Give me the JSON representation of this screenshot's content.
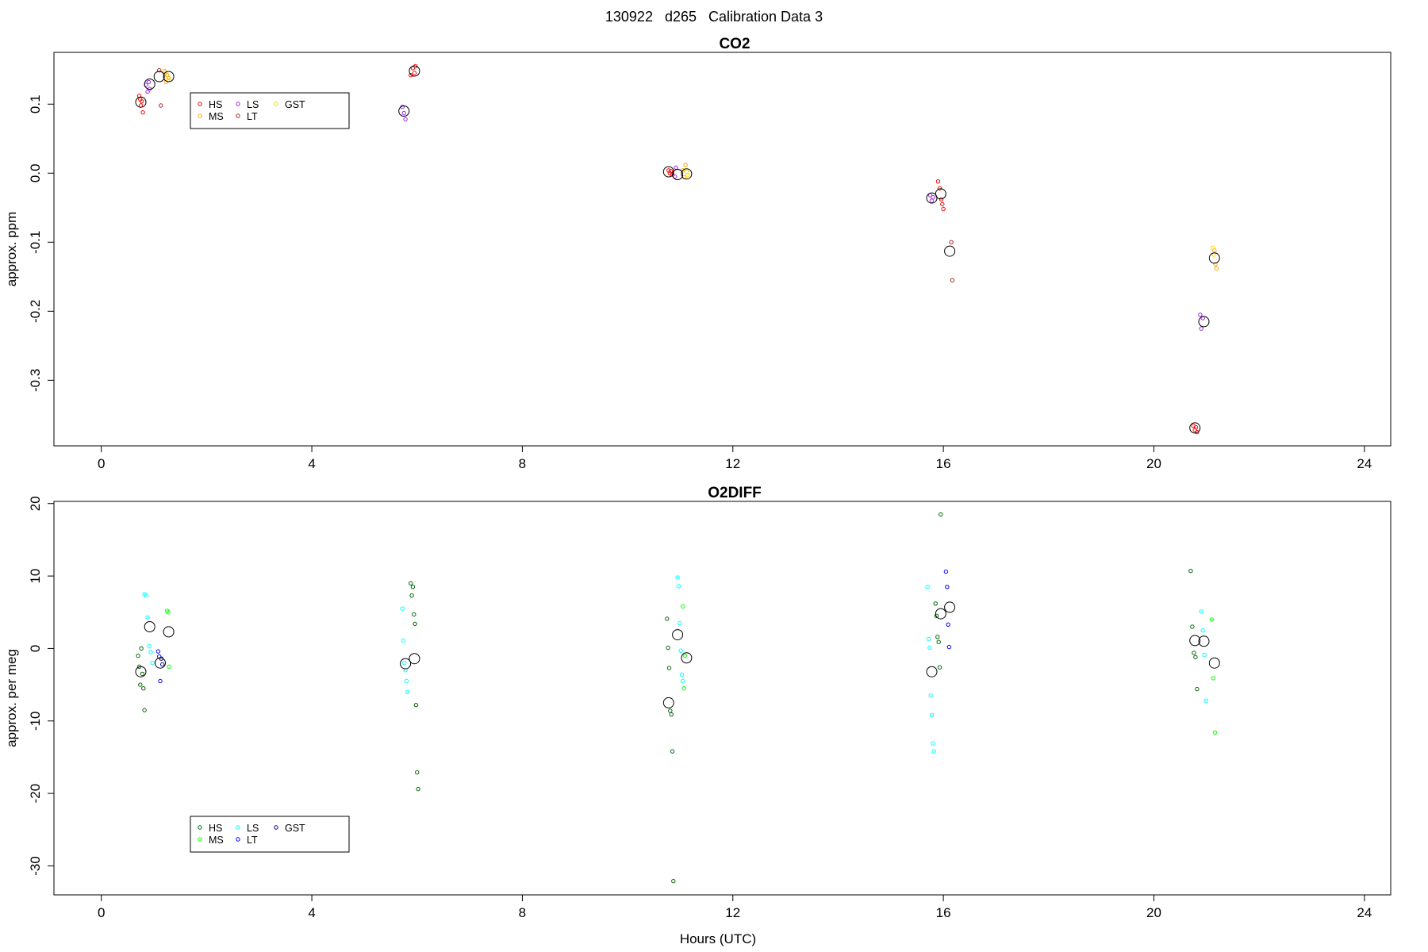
{
  "figure_title": "130922   d265   Calibration Data 3",
  "xlabel": "Hours (UTC)",
  "chart_data": [
    {
      "type": "scatter",
      "title": "CO2",
      "ylabel": "approx. ppm",
      "xlim": [
        -0.9,
        24.5
      ],
      "ylim": [
        -0.395,
        0.175
      ],
      "xticks": [
        0,
        4,
        8,
        12,
        16,
        20,
        24
      ],
      "yticks": [
        0.1,
        0.0,
        -0.1,
        -0.2,
        -0.3
      ],
      "ytick_labels": [
        "0.1",
        "0.0",
        "-0.1",
        "-0.2",
        "-0.3"
      ],
      "legend": {
        "position": "top-left",
        "entries": [
          {
            "label": "HS",
            "color": "#ff0000"
          },
          {
            "label": "MS",
            "color": "#ffa500"
          },
          {
            "label": "LS",
            "color": "#a020f0"
          },
          {
            "label": "LT",
            "color": "#b22222"
          },
          {
            "label": "GST",
            "color": "#ffd700"
          }
        ]
      },
      "series": [
        {
          "name": "HS",
          "color": "#ff0000",
          "points": [
            [
              0.72,
              0.112
            ],
            [
              0.75,
              0.098
            ],
            [
              0.77,
              0.104
            ],
            [
              0.79,
              0.088
            ],
            [
              0.74,
              0.107
            ],
            [
              5.88,
              0.142
            ],
            [
              5.92,
              0.152
            ],
            [
              5.95,
              0.145
            ],
            [
              5.97,
              0.155
            ],
            [
              10.78,
              0.004
            ],
            [
              10.8,
              0.0
            ],
            [
              10.82,
              0.003
            ],
            [
              10.85,
              -0.002
            ],
            [
              15.9,
              -0.012
            ],
            [
              15.93,
              -0.022
            ],
            [
              15.96,
              -0.038
            ],
            [
              15.98,
              -0.045
            ],
            [
              16.0,
              -0.052
            ],
            [
              20.75,
              -0.366
            ],
            [
              20.78,
              -0.372
            ],
            [
              20.8,
              -0.368
            ],
            [
              20.82,
              -0.375
            ]
          ]
        },
        {
          "name": "MS",
          "color": "#ffa500",
          "points": [
            [
              1.2,
              0.148
            ],
            [
              1.23,
              0.132
            ],
            [
              1.25,
              0.142
            ],
            [
              1.28,
              0.138
            ],
            [
              11.05,
              0.004
            ],
            [
              11.08,
              -0.006
            ],
            [
              11.1,
              0.012
            ],
            [
              21.15,
              -0.112
            ],
            [
              21.17,
              -0.132
            ],
            [
              21.19,
              -0.138
            ]
          ]
        },
        {
          "name": "LS",
          "color": "#a020f0",
          "points": [
            [
              0.85,
              0.128
            ],
            [
              0.88,
              0.118
            ],
            [
              0.9,
              0.132
            ],
            [
              0.92,
              0.122
            ],
            [
              5.72,
              0.096
            ],
            [
              5.75,
              0.087
            ],
            [
              5.78,
              0.078
            ],
            [
              10.9,
              -0.005
            ],
            [
              10.92,
              0.008
            ],
            [
              15.75,
              -0.032
            ],
            [
              15.78,
              -0.04
            ],
            [
              15.8,
              -0.035
            ],
            [
              20.88,
              -0.205
            ],
            [
              20.9,
              -0.225
            ],
            [
              20.93,
              -0.21
            ]
          ]
        },
        {
          "name": "LT",
          "color": "#b22222",
          "points": [
            [
              1.1,
              0.149
            ],
            [
              1.13,
              0.098
            ],
            [
              16.15,
              -0.1
            ],
            [
              16.17,
              -0.155
            ]
          ]
        },
        {
          "name": "GST",
          "color": "#ffd700",
          "points": [
            [
              1.22,
              0.145
            ],
            [
              1.27,
              0.135
            ],
            [
              11.12,
              0.002
            ],
            [
              11.14,
              -0.003
            ],
            [
              21.12,
              -0.108
            ],
            [
              21.14,
              -0.118
            ]
          ]
        }
      ],
      "means": [
        [
          0.75,
          0.103
        ],
        [
          0.92,
          0.129
        ],
        [
          1.1,
          0.14
        ],
        [
          1.28,
          0.14
        ],
        [
          5.75,
          0.09
        ],
        [
          5.95,
          0.148
        ],
        [
          10.78,
          0.002
        ],
        [
          10.95,
          -0.002
        ],
        [
          11.12,
          -0.001
        ],
        [
          15.78,
          -0.036
        ],
        [
          15.95,
          -0.03
        ],
        [
          16.12,
          -0.113
        ],
        [
          20.78,
          -0.369
        ],
        [
          20.95,
          -0.215
        ],
        [
          21.15,
          -0.123
        ]
      ]
    },
    {
      "type": "scatter",
      "title": "O2DIFF",
      "ylabel": "approx. per meg",
      "xlim": [
        -0.9,
        24.5
      ],
      "ylim": [
        -34.0,
        20.3
      ],
      "xticks": [
        0,
        4,
        8,
        12,
        16,
        20,
        24
      ],
      "yticks": [
        20,
        10,
        0,
        -10,
        -20,
        -30
      ],
      "ytick_labels": [
        "20",
        "10",
        "0",
        "-10",
        "-20",
        "-30"
      ],
      "legend": {
        "position": "bottom-left",
        "entries": [
          {
            "label": "HS",
            "color": "#006400"
          },
          {
            "label": "MS",
            "color": "#00ff00"
          },
          {
            "label": "LS",
            "color": "#00ffff"
          },
          {
            "label": "LT",
            "color": "#0000ff"
          },
          {
            "label": "GST",
            "color": "#00008b"
          }
        ]
      },
      "series": [
        {
          "name": "HS",
          "color": "#006400",
          "points": [
            [
              0.7,
              -1.0
            ],
            [
              0.72,
              -2.5
            ],
            [
              0.74,
              -5.0
            ],
            [
              0.76,
              0.0
            ],
            [
              0.78,
              -3.5
            ],
            [
              0.8,
              -5.5
            ],
            [
              0.82,
              -8.5
            ],
            [
              5.88,
              9.0
            ],
            [
              5.9,
              7.3
            ],
            [
              5.92,
              8.5
            ],
            [
              5.94,
              4.7
            ],
            [
              5.96,
              3.4
            ],
            [
              5.98,
              -7.8
            ],
            [
              6.0,
              -17.1
            ],
            [
              6.02,
              -19.4
            ],
            [
              10.75,
              4.1
            ],
            [
              10.77,
              0.1
            ],
            [
              10.79,
              -2.7
            ],
            [
              10.81,
              -8.6
            ],
            [
              10.83,
              -9.1
            ],
            [
              10.85,
              -14.2
            ],
            [
              10.87,
              -32.1
            ],
            [
              15.85,
              6.2
            ],
            [
              15.87,
              4.5
            ],
            [
              15.89,
              1.6
            ],
            [
              15.91,
              0.9
            ],
            [
              15.93,
              -2.6
            ],
            [
              15.95,
              18.5
            ],
            [
              20.7,
              10.7
            ],
            [
              20.73,
              3.0
            ],
            [
              20.76,
              -0.6
            ],
            [
              20.79,
              -1.2
            ],
            [
              20.82,
              -5.6
            ]
          ]
        },
        {
          "name": "MS",
          "color": "#00ff00",
          "points": [
            [
              1.25,
              5.2
            ],
            [
              1.27,
              5.0
            ],
            [
              1.29,
              -2.5
            ],
            [
              11.05,
              5.8
            ],
            [
              11.07,
              -5.5
            ],
            [
              11.09,
              -1.0
            ],
            [
              21.1,
              4.0
            ],
            [
              21.13,
              -4.1
            ],
            [
              21.16,
              -11.6
            ]
          ]
        },
        {
          "name": "LS",
          "color": "#00ffff",
          "points": [
            [
              0.82,
              7.5
            ],
            [
              0.85,
              7.3
            ],
            [
              0.88,
              4.3
            ],
            [
              0.91,
              0.3
            ],
            [
              0.94,
              -0.5
            ],
            [
              0.97,
              -2.0
            ],
            [
              5.72,
              5.5
            ],
            [
              5.74,
              1.1
            ],
            [
              5.76,
              -2.0
            ],
            [
              5.78,
              -3.0
            ],
            [
              5.8,
              -4.5
            ],
            [
              5.82,
              -6.0
            ],
            [
              10.95,
              9.8
            ],
            [
              10.97,
              8.6
            ],
            [
              10.99,
              3.5
            ],
            [
              11.01,
              -0.3
            ],
            [
              11.03,
              -3.6
            ],
            [
              11.05,
              -4.5
            ],
            [
              15.7,
              8.5
            ],
            [
              15.72,
              1.3
            ],
            [
              15.74,
              0.1
            ],
            [
              15.76,
              -6.5
            ],
            [
              15.78,
              -9.2
            ],
            [
              15.8,
              -13.1
            ],
            [
              15.82,
              -14.2
            ],
            [
              20.9,
              5.1
            ],
            [
              20.93,
              2.5
            ],
            [
              20.96,
              -0.9
            ],
            [
              20.99,
              -7.2
            ]
          ]
        },
        {
          "name": "LT",
          "color": "#0000ff",
          "points": [
            [
              1.08,
              -0.4
            ],
            [
              1.1,
              -1.1
            ],
            [
              1.12,
              -4.5
            ],
            [
              16.05,
              10.6
            ],
            [
              16.07,
              8.5
            ],
            [
              16.09,
              3.3
            ],
            [
              16.11,
              0.2
            ]
          ]
        },
        {
          "name": "GST",
          "color": "#00008b",
          "points": [
            [
              1.14,
              -1.4
            ],
            [
              1.16,
              -2.2
            ]
          ]
        }
      ],
      "means": [
        [
          0.75,
          -3.2
        ],
        [
          0.92,
          3.0
        ],
        [
          1.12,
          -2.0
        ],
        [
          1.28,
          2.3
        ],
        [
          5.78,
          -2.1
        ],
        [
          5.95,
          -1.4
        ],
        [
          10.78,
          -7.5
        ],
        [
          10.95,
          1.9
        ],
        [
          11.12,
          -1.3
        ],
        [
          15.78,
          -3.2
        ],
        [
          15.95,
          4.8
        ],
        [
          16.12,
          5.7
        ],
        [
          20.78,
          1.1
        ],
        [
          20.95,
          1.0
        ],
        [
          21.15,
          -2.0
        ]
      ]
    }
  ]
}
